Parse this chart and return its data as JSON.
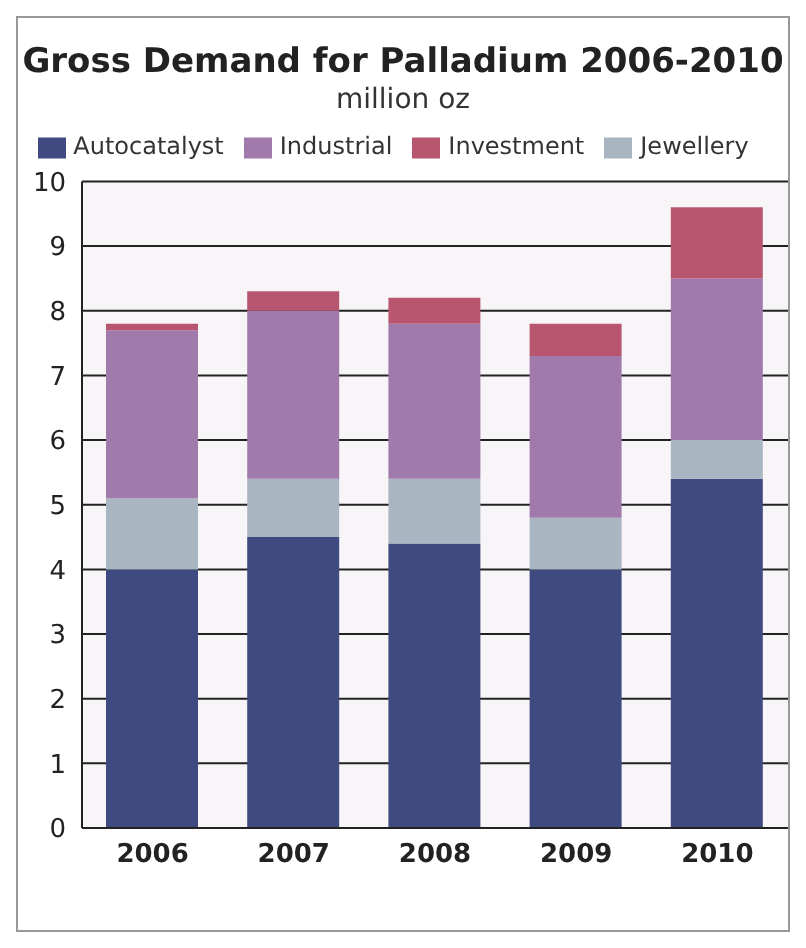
{
  "chart_data": {
    "type": "bar",
    "title": "Gross Demand for Palladium 2006-2010",
    "subtitle": "million oz",
    "categories": [
      "2006",
      "2007",
      "2008",
      "2009",
      "2010"
    ],
    "stacked": true,
    "legend": "top",
    "grid": "y",
    "ylim": [
      0,
      10
    ],
    "yticks": [
      0,
      1,
      2,
      3,
      4,
      5,
      6,
      7,
      8,
      9,
      10
    ],
    "series": [
      {
        "name": "Autocatalyst",
        "color": "#3f4a80",
        "values": [
          4.0,
          4.5,
          4.4,
          4.0,
          5.4
        ]
      },
      {
        "name": "Jewellery",
        "color": "#aab5c2",
        "values": [
          1.1,
          0.9,
          1.0,
          0.8,
          0.6
        ]
      },
      {
        "name": "Industrial",
        "color": "#a07aab",
        "values": [
          2.6,
          2.6,
          2.4,
          2.5,
          2.5
        ]
      },
      {
        "name": "Investment",
        "color": "#b9566f",
        "values": [
          0.1,
          0.3,
          0.4,
          0.5,
          1.1
        ]
      }
    ]
  }
}
